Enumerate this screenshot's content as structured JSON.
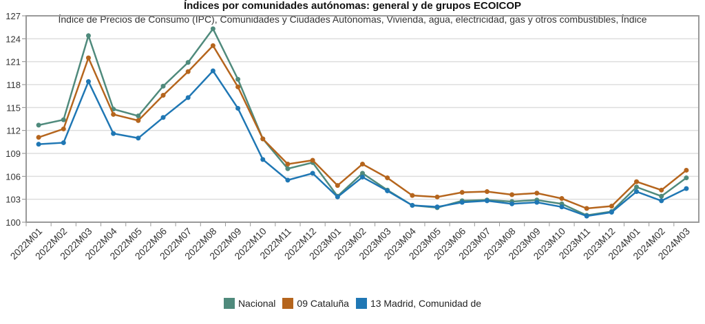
{
  "chart_data": {
    "type": "line",
    "title": "Índices por comunidades autónomas: general y de grupos ECOICOP",
    "subtitle": "Índice de Precios de Consumo (IPC), Comunidades y Ciudades Autónomas, Vivienda, agua, electricidad, gas y otros combustibles, Índice",
    "categories": [
      "2022M01",
      "2022M02",
      "2022M03",
      "2022M04",
      "2022M05",
      "2022M06",
      "2022M07",
      "2022M08",
      "2022M09",
      "2022M10",
      "2022M11",
      "2022M12",
      "2023M01",
      "2023M02",
      "2023M03",
      "2023M04",
      "2023M05",
      "2023M06",
      "2023M07",
      "2023M08",
      "2023M09",
      "2023M10",
      "2023M11",
      "2023M12",
      "2024M01",
      "2024M02",
      "2024M03"
    ],
    "yticks": [
      100,
      103,
      106,
      109,
      112,
      115,
      118,
      121,
      124,
      127
    ],
    "ylim": [
      100,
      127
    ],
    "grid": true,
    "legend_position": "bottom",
    "series": [
      {
        "name": "Nacional",
        "color": "#4f8a7c",
        "values": [
          112.7,
          113.4,
          124.4,
          114.8,
          113.9,
          117.8,
          120.9,
          125.3,
          118.7,
          110.9,
          107.0,
          107.8,
          103.4,
          106.4,
          104.2,
          102.2,
          101.9,
          102.8,
          102.9,
          102.7,
          102.9,
          102.4,
          100.9,
          101.4,
          104.6,
          103.4,
          105.8
        ]
      },
      {
        "name": "09 Cataluña",
        "color": "#b5651d",
        "values": [
          111.1,
          112.2,
          121.5,
          114.1,
          113.3,
          116.6,
          119.7,
          123.1,
          117.7,
          110.9,
          107.6,
          108.1,
          104.8,
          107.6,
          105.8,
          103.5,
          103.3,
          103.9,
          104.0,
          103.6,
          103.8,
          103.1,
          101.8,
          102.1,
          105.3,
          104.2,
          106.8
        ]
      },
      {
        "name": "13 Madrid, Comunidad de",
        "color": "#1f77b4",
        "values": [
          110.2,
          110.4,
          118.4,
          111.6,
          111.0,
          113.7,
          116.3,
          119.8,
          114.9,
          108.2,
          105.5,
          106.4,
          103.3,
          105.9,
          104.1,
          102.2,
          102.0,
          102.6,
          102.8,
          102.4,
          102.6,
          102.0,
          100.8,
          101.3,
          104.0,
          102.8,
          104.4
        ]
      }
    ]
  }
}
